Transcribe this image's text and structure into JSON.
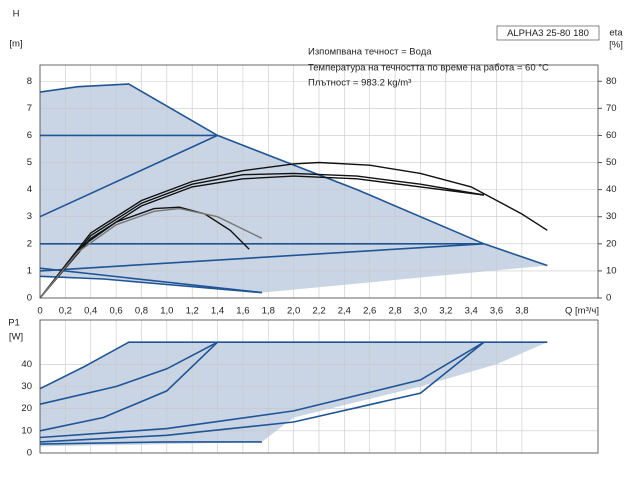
{
  "chart_data": [
    {
      "type": "line",
      "title": "ALPHA3 25-80 180",
      "annotations": [
        "Изпомпвана течност = Вода",
        "Температура на течността по време на работа = 60 °C",
        "Плътност = 983.2 kg/m³"
      ],
      "y_label": "H",
      "y_unit": "[m]",
      "y2_label": "eta",
      "y2_unit": "[%]",
      "x_label": "Q [m³/ч]",
      "xlim": [
        0,
        4.4
      ],
      "xticks": [
        0,
        {
          "value": 0.2,
          "label": "0,2"
        },
        {
          "value": 0.4,
          "label": "0,4"
        },
        {
          "value": 0.6,
          "label": "0,6"
        },
        {
          "value": 0.8,
          "label": "0,8"
        },
        {
          "value": 1.0,
          "label": "1,0"
        },
        {
          "value": 1.2,
          "label": "1,2"
        },
        {
          "value": 1.4,
          "label": "1,4"
        },
        {
          "value": 1.6,
          "label": "1,6"
        },
        {
          "value": 1.8,
          "label": "1,8"
        },
        {
          "value": 2.0,
          "label": "2,0"
        },
        {
          "value": 2.2,
          "label": "2,2"
        },
        {
          "value": 2.4,
          "label": "2,4"
        },
        {
          "value": 2.6,
          "label": "2,6"
        },
        {
          "value": 2.8,
          "label": "2,8"
        },
        {
          "value": 3.0,
          "label": "3,0"
        },
        {
          "value": 3.2,
          "label": "3,2"
        },
        {
          "value": 3.4,
          "label": "3,4"
        },
        {
          "value": 3.6,
          "label": "3,6"
        },
        {
          "value": 3.8,
          "label": "3,8"
        }
      ],
      "ylim": [
        0,
        8.6
      ],
      "yticks": [
        0,
        1,
        2,
        3,
        4,
        5,
        6,
        7,
        8
      ],
      "y2lim": [
        0,
        86
      ],
      "y2ticks": [
        0,
        10,
        20,
        30,
        40,
        50,
        60,
        70,
        80
      ],
      "grid": true,
      "series": [
        {
          "area": true,
          "color": "#c9d5e4",
          "x": [
            0,
            0.3,
            0.7,
            1.4,
            2.5,
            3.5,
            4.0,
            1.75,
            1.0,
            0.5,
            0
          ],
          "values": [
            7.6,
            7.8,
            7.9,
            6.0,
            4.0,
            2.0,
            1.2,
            0.2,
            0.5,
            0.7,
            0.8
          ]
        },
        {
          "color": "#1f5596",
          "x": [
            0,
            0.3,
            0.7,
            1.4,
            2.5,
            3.5,
            4.0
          ],
          "values": [
            7.6,
            7.8,
            7.9,
            6.0,
            4.0,
            2.0,
            1.2
          ]
        },
        {
          "color": "#1f5596",
          "x": [
            0,
            1.4
          ],
          "values": [
            6,
            6
          ]
        },
        {
          "color": "#1f5596",
          "x": [
            0,
            1.4
          ],
          "values": [
            3,
            6
          ]
        },
        {
          "color": "#1f5596",
          "x": [
            0,
            3.5
          ],
          "values": [
            2,
            2
          ]
        },
        {
          "color": "#1f5596",
          "x": [
            0,
            3.5
          ],
          "values": [
            1,
            2
          ]
        },
        {
          "color": "#1f5596",
          "x": [
            0,
            0.5,
            1.0,
            1.75
          ],
          "values": [
            0.8,
            0.7,
            0.5,
            0.2
          ]
        },
        {
          "color": "#1f5596",
          "x": [
            0,
            1.75
          ],
          "values": [
            1.1,
            0.2
          ]
        },
        {
          "axis": "y2",
          "color": "#111",
          "x": [
            0,
            0.4,
            0.8,
            1.2,
            1.6,
            2.0,
            2.2,
            2.6,
            3.0,
            3.4,
            3.8,
            4.0
          ],
          "values": [
            0,
            24,
            36,
            43,
            47,
            49.5,
            50,
            49,
            46,
            41,
            31,
            25
          ]
        },
        {
          "axis": "y2",
          "color": "#111",
          "x": [
            0,
            0.4,
            0.8,
            1.2,
            1.6,
            2.0,
            2.5,
            3.0,
            3.5
          ],
          "values": [
            0,
            23,
            35,
            42,
            45.5,
            46,
            45,
            42,
            38
          ]
        },
        {
          "axis": "y2",
          "color": "#111",
          "x": [
            0,
            0.4,
            0.8,
            1.2,
            1.6,
            2.0,
            2.5,
            3.0,
            3.5
          ],
          "values": [
            0,
            22,
            34,
            41,
            44,
            45,
            44,
            41,
            38
          ]
        },
        {
          "axis": "y2",
          "color": "#111",
          "x": [
            0,
            0.3,
            0.6,
            0.9,
            1.1,
            1.3,
            1.5,
            1.65
          ],
          "values": [
            0,
            18,
            28,
            33,
            33.5,
            31,
            25,
            18
          ]
        },
        {
          "axis": "y2",
          "color": "#777",
          "x": [
            0,
            0.3,
            0.6,
            0.9,
            1.1,
            1.4,
            1.75
          ],
          "values": [
            0,
            17,
            27,
            32,
            33,
            30,
            22
          ]
        }
      ]
    },
    {
      "type": "line",
      "y_label": "P1",
      "y_unit": "[W]",
      "xlim": [
        0,
        4.4
      ],
      "ylim": [
        0,
        60
      ],
      "yticks": [
        0,
        10,
        20,
        30,
        40
      ],
      "grid": true,
      "series": [
        {
          "area": true,
          "color": "#c9d5e4",
          "x": [
            0,
            0.7,
            4.0,
            3.6,
            3.0,
            2.5,
            2.0,
            1.75,
            1.0,
            0
          ],
          "values": [
            29,
            50,
            50,
            40,
            30,
            23,
            16,
            5,
            4,
            3
          ]
        },
        {
          "color": "#1f5596",
          "x": [
            0,
            0.35,
            0.7,
            4.0
          ],
          "values": [
            29,
            39,
            50,
            50
          ]
        },
        {
          "color": "#1f5596",
          "x": [
            0,
            0.6,
            1.0,
            1.4
          ],
          "values": [
            22,
            30,
            38,
            50
          ]
        },
        {
          "color": "#1f5596",
          "x": [
            0,
            0.5,
            1.0,
            1.4
          ],
          "values": [
            10,
            16,
            28,
            50
          ]
        },
        {
          "color": "#1f5596",
          "x": [
            0,
            1.0,
            2.0,
            3.0,
            3.5
          ],
          "values": [
            7,
            11,
            19,
            33,
            50
          ]
        },
        {
          "color": "#1f5596",
          "x": [
            0,
            1.0,
            2.0,
            3.0,
            3.5
          ],
          "values": [
            5,
            8,
            14,
            27,
            50
          ]
        },
        {
          "color": "#1f5596",
          "x": [
            0,
            1.0,
            1.75
          ],
          "values": [
            4,
            5,
            5
          ]
        }
      ]
    }
  ]
}
